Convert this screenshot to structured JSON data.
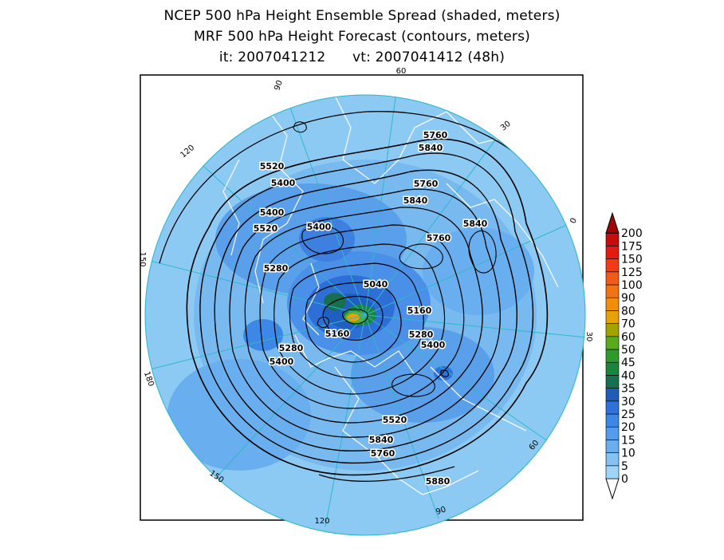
{
  "title": {
    "line1": "NCEP 500 hPa Height Ensemble Spread (shaded, meters)",
    "line2": "MRF 500 hPa Height Forecast (contours, meters)",
    "line3": "it: 2007041212      vt: 2007041412 (48h)"
  },
  "longitude_labels": [
    "90",
    "60",
    "30",
    "0",
    "30",
    "60",
    "90",
    "120",
    "150",
    "180",
    "150",
    "120"
  ],
  "contour_labels": [
    "5760",
    "5840",
    "5520",
    "5400",
    "5760",
    "5840",
    "5400",
    "5520",
    "5400",
    "5760",
    "5840",
    "5280",
    "5040",
    "5160",
    "5160",
    "5280",
    "5400",
    "5280",
    "5400",
    "5520",
    "5840",
    "5760",
    "5880"
  ],
  "colorbar": {
    "levels": [
      "0",
      "5",
      "10",
      "15",
      "20",
      "25",
      "30",
      "35",
      "40",
      "45",
      "50",
      "60",
      "70",
      "80",
      "90",
      "100",
      "125",
      "150",
      "175",
      "200"
    ],
    "colors": [
      "#9fd3f7",
      "#84c2f2",
      "#6aaeee",
      "#539beb",
      "#3d88e6",
      "#2e73dc",
      "#1e5cb8",
      "#167050",
      "#19853d",
      "#2f9a2c",
      "#5aaa1f",
      "#a2a300",
      "#e6a20a",
      "#ef8f0c",
      "#f07316",
      "#f25a19",
      "#f23a16",
      "#e21b12",
      "#c40d0d",
      "#9e0505"
    ]
  }
}
